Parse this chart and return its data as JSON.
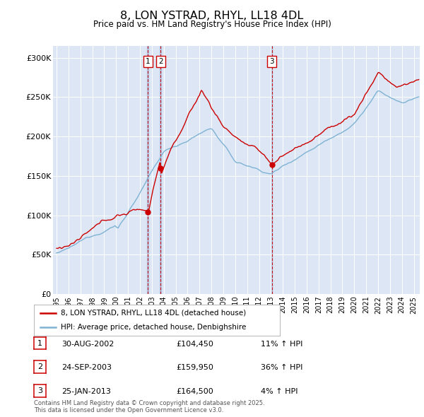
{
  "title": "8, LON YSTRAD, RHYL, LL18 4DL",
  "subtitle": "Price paid vs. HM Land Registry's House Price Index (HPI)",
  "ylabel_ticks": [
    "£0",
    "£50K",
    "£100K",
    "£150K",
    "£200K",
    "£250K",
    "£300K"
  ],
  "ytick_values": [
    0,
    50000,
    100000,
    150000,
    200000,
    250000,
    300000
  ],
  "ylim": [
    0,
    315000
  ],
  "xlim_start": 1994.7,
  "xlim_end": 2025.5,
  "background_color": "#dce6f5",
  "transactions": [
    {
      "num": 1,
      "date": "30-AUG-2002",
      "price": 104450,
      "x_year": 2002.66,
      "pct": "11%",
      "dir": "↑"
    },
    {
      "num": 2,
      "date": "24-SEP-2003",
      "price": 159950,
      "x_year": 2003.73,
      "pct": "36%",
      "dir": "↑"
    },
    {
      "num": 3,
      "date": "25-JAN-2013",
      "price": 164500,
      "x_year": 2013.07,
      "pct": "4%",
      "dir": "↑"
    }
  ],
  "legend_entries": [
    "8, LON YSTRAD, RHYL, LL18 4DL (detached house)",
    "HPI: Average price, detached house, Denbighshire"
  ],
  "footnote": "Contains HM Land Registry data © Crown copyright and database right 2025.\nThis data is licensed under the Open Government Licence v3.0.",
  "red_line_color": "#cc0000",
  "blue_line_color": "#7fb3d3"
}
